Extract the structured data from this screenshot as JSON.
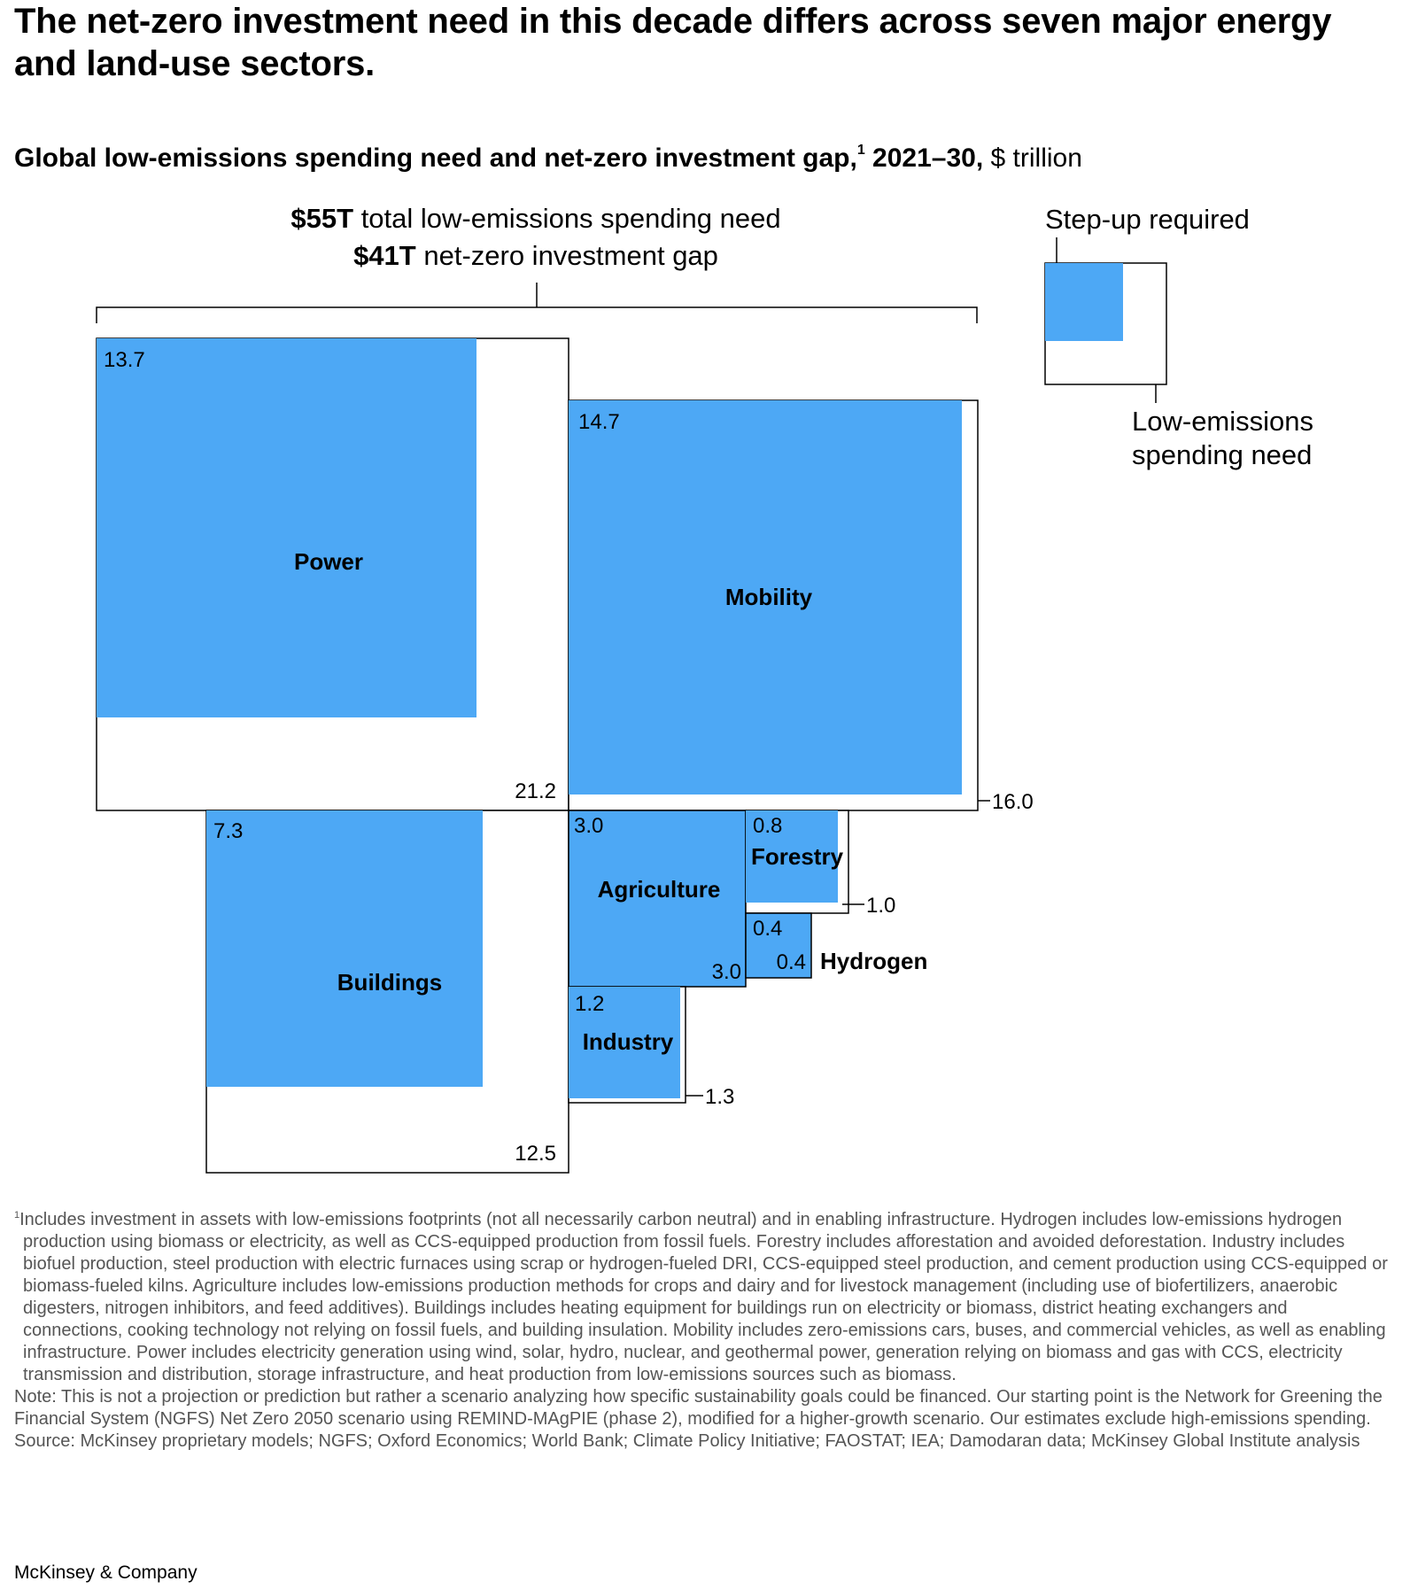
{
  "header": {
    "title": "The net-zero investment need in this decade differs across seven major energy and land-use sectors.",
    "subtitle_bold": "Global low-emissions spending need and net-zero investment gap,",
    "subtitle_sup": "1",
    "subtitle_years": " 2021–30,",
    "subtitle_units": " $ trillion"
  },
  "totals": {
    "total_value": "$55T",
    "total_label": " total low-emissions spending need",
    "gap_value": "$41T",
    "gap_label": " net-zero investment gap"
  },
  "legend": {
    "stepup_label": "Step-up required",
    "need_label_line1": "Low-emissions",
    "need_label_line2": "spending need"
  },
  "colors": {
    "step_up": "#4DA8F5",
    "spending_need_fill": "#FFFFFF",
    "outline": "#000000"
  },
  "chart_data": {
    "type": "nested-square",
    "units": "$ trillion",
    "sectors": [
      {
        "name": "Power",
        "step_up": 13.7,
        "spending_need": 21.2,
        "step_up_label": "13.7",
        "need_label": "21.2"
      },
      {
        "name": "Mobility",
        "step_up": 14.7,
        "spending_need": 16.0,
        "step_up_label": "14.7",
        "need_label": "16.0"
      },
      {
        "name": "Buildings",
        "step_up": 7.3,
        "spending_need": 12.5,
        "step_up_label": "7.3",
        "need_label": "12.5"
      },
      {
        "name": "Agriculture",
        "step_up": 3.0,
        "spending_need": 3.0,
        "step_up_label": "3.0",
        "need_label": "3.0"
      },
      {
        "name": "Forestry",
        "step_up": 0.8,
        "spending_need": 1.0,
        "step_up_label": "0.8",
        "need_label": "1.0"
      },
      {
        "name": "Hydrogen",
        "step_up": 0.4,
        "spending_need": 0.4,
        "step_up_label": "0.4",
        "need_label": "0.4"
      },
      {
        "name": "Industry",
        "step_up": 1.2,
        "spending_need": 1.3,
        "step_up_label": "1.2",
        "need_label": "1.3"
      }
    ]
  },
  "footnotes": {
    "note1_sup": "1",
    "note1": "Includes investment in assets with low-emissions footprints (not all necessarily carbon neutral) and in enabling infrastructure. Hydrogen includes low-emissions hydrogen production using biomass or electricity, as well as CCS-equipped production from fossil fuels. Forestry includes afforestation and avoided deforestation. Industry includes biofuel production, steel production with electric furnaces using scrap or hydrogen-fueled DRI, CCS-equipped steel production, and cement production using CCS-equipped or biomass-fueled kilns. Agriculture includes low-emissions production methods for crops and dairy and for livestock management (including use of biofertilizers, anaerobic digesters, nitrogen inhibitors, and feed additives). Buildings includes heating equipment for buildings run on electricity or biomass, district heating exchangers and connections, cooking technology not relying on fossil fuels, and building insulation. Mobility includes zero-emissions cars, buses, and commercial vehicles, as well as enabling infrastructure. Power includes electricity generation using wind, solar, hydro, nuclear, and geothermal power, generation relying on biomass and gas with CCS, electricity transmission and distribution, storage infrastructure, and heat production from low-emissions sources such as biomass.",
    "note": "Note: This is not a projection or prediction but rather a scenario analyzing how specific sustainability goals could be financed. Our starting point is the Network for Greening the Financial System (NGFS) Net Zero 2050 scenario using REMIND-MAgPIE (phase 2), modified for a higher-growth scenario. Our estimates exclude high-emissions spending.",
    "source": "Source: McKinsey proprietary models; NGFS; Oxford Economics; World Bank; Climate Policy Initiative; FAOSTAT; IEA; Damodaran data; McKinsey Global Institute analysis"
  },
  "brand": "McKinsey & Company"
}
